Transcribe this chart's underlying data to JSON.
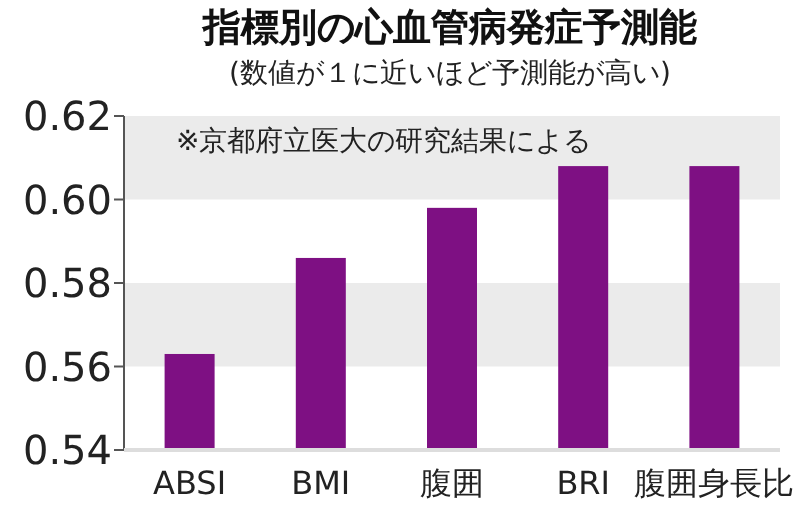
{
  "chart_data": {
    "type": "bar",
    "title": "指標別の心血管病発症予測能",
    "subtitle": "(数値が１に近いほど予測能が高い)",
    "annotations": [
      "※京都府立医大の研究結果による"
    ],
    "categories": [
      "ABSI",
      "BMI",
      "腹囲",
      "BRI",
      "腹囲身長比"
    ],
    "values": [
      0.563,
      0.586,
      0.598,
      0.608,
      0.608
    ],
    "color": "#7e1083",
    "ylim": [
      0.54,
      0.62
    ],
    "yticks": [
      {
        "value": 0.54,
        "label": "0.54"
      },
      {
        "value": 0.56,
        "label": "0.56"
      },
      {
        "value": 0.58,
        "label": "0.58"
      },
      {
        "value": 0.6,
        "label": "0.60"
      },
      {
        "value": 0.62,
        "label": "0.62"
      }
    ],
    "bands": [
      {
        "axis": "y",
        "from": 0.56,
        "to": 0.58,
        "color": "#ebebeb"
      },
      {
        "axis": "y",
        "from": 0.6,
        "to": 0.62,
        "color": "#ebebeb"
      }
    ],
    "grid": false
  }
}
